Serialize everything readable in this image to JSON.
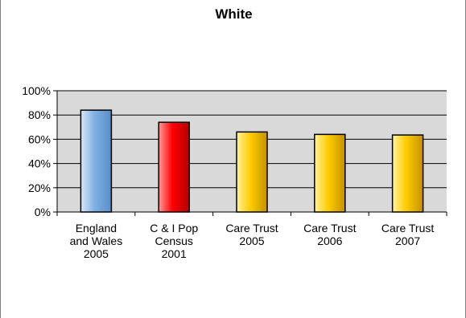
{
  "chart_data": {
    "type": "bar",
    "title": "White",
    "categories": [
      [
        "England",
        "and Wales",
        "2005"
      ],
      [
        "C & I Pop",
        "Census",
        "2001"
      ],
      [
        "Care Trust",
        "2005"
      ],
      [
        "Care Trust",
        "2006"
      ],
      [
        "Care Trust",
        "2007"
      ]
    ],
    "values": [
      84,
      74,
      66,
      64,
      63.5
    ],
    "bar_colors": [
      {
        "light": "#d9e8fa",
        "mid": "#7fb0e3",
        "dark": "#5a8dc7"
      },
      {
        "light": "#ff9a9a",
        "mid": "#ff0000",
        "dark": "#b00000"
      },
      {
        "light": "#fff2a0",
        "mid": "#ffcc00",
        "dark": "#c49100"
      },
      {
        "light": "#fff2a0",
        "mid": "#ffcc00",
        "dark": "#c49100"
      },
      {
        "light": "#fff2a0",
        "mid": "#ffcc00",
        "dark": "#c49100"
      }
    ],
    "y_ticks": [
      "0%",
      "20%",
      "40%",
      "60%",
      "80%",
      "100%"
    ],
    "ylim": [
      0,
      100
    ],
    "xlabel": "",
    "ylabel": "",
    "grid": true,
    "legend": "none",
    "plot_background": "#d9d9d9"
  }
}
